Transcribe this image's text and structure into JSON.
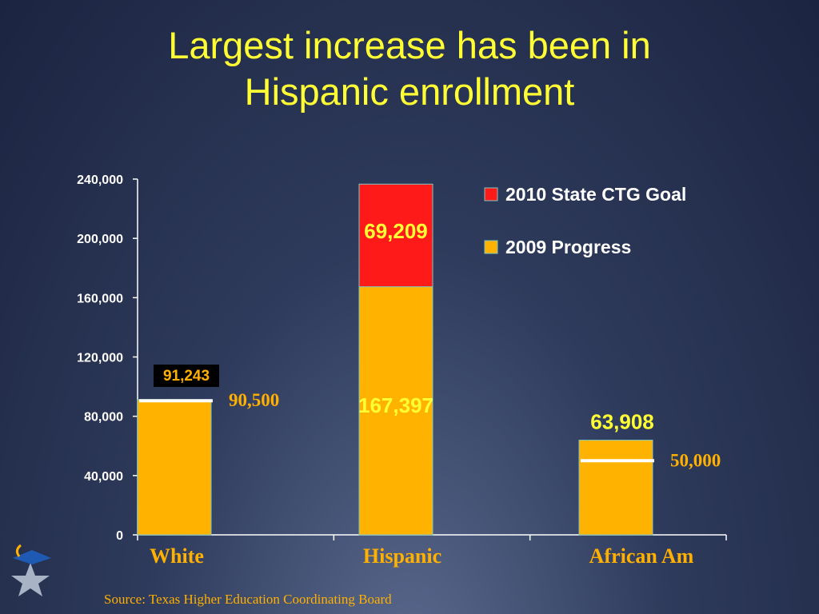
{
  "title_lines": [
    "Largest increase has been in",
    "Hispanic enrollment"
  ],
  "source": "Source: Texas Higher Education Coordinating Board",
  "chart_data": {
    "type": "bar",
    "stacked": true,
    "categories": [
      "White",
      "Hispanic",
      "African Am"
    ],
    "series": [
      {
        "name": "2009 Progress",
        "values": [
          91243,
          167397,
          63908
        ],
        "color": "#ffb300"
      },
      {
        "name": "2010 State CTG Goal",
        "values": [
          0,
          69209,
          0
        ],
        "color": "#ff1a1a"
      }
    ],
    "goal_markers": [
      {
        "category": "White",
        "value": 90500,
        "label": "90,500"
      },
      {
        "category": "African Am",
        "value": 50000,
        "label": "50,000"
      }
    ],
    "data_labels": [
      {
        "category": "White",
        "text": "91,243",
        "boxed": true
      },
      {
        "category": "Hispanic",
        "text": "167,397"
      },
      {
        "category": "Hispanic",
        "text": "69,209"
      },
      {
        "category": "African Am",
        "text": "63,908"
      }
    ],
    "y_ticks": [
      "0",
      "40,000",
      "80,000",
      "120,000",
      "160,000",
      "200,000",
      "240,000"
    ],
    "ylim": [
      0,
      240000
    ],
    "legend_position": "top-right",
    "grid": false
  }
}
